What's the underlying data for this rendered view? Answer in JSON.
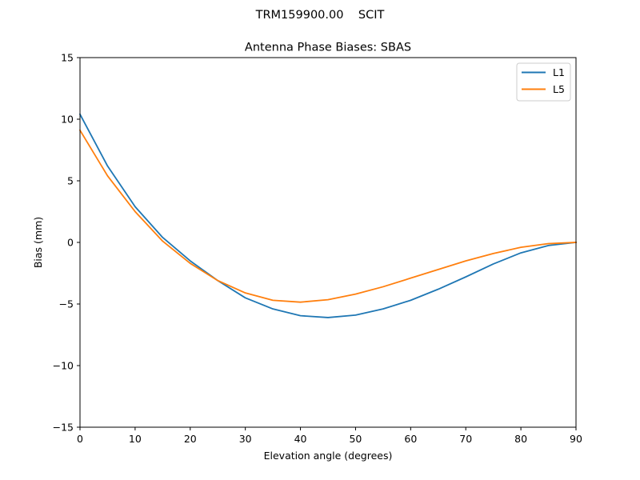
{
  "chart_data": {
    "type": "line",
    "suptitle": "TRM159900.00    SCIT",
    "title": "Antenna Phase Biases: SBAS",
    "xlabel": "Elevation angle (degrees)",
    "ylabel": "Bias (mm)",
    "xlim": [
      0,
      90
    ],
    "ylim": [
      -15,
      15
    ],
    "xticks": [
      0,
      10,
      20,
      30,
      40,
      50,
      60,
      70,
      80,
      90
    ],
    "yticks": [
      -15,
      -10,
      -5,
      0,
      5,
      10,
      15
    ],
    "ytick_labels": [
      "−15",
      "−10",
      "−5",
      "0",
      "5",
      "10",
      "15"
    ],
    "grid": false,
    "legend": "top-right",
    "x": [
      0,
      5,
      10,
      15,
      20,
      25,
      30,
      35,
      40,
      45,
      50,
      55,
      60,
      65,
      70,
      75,
      80,
      85,
      90
    ],
    "series": [
      {
        "name": "L1",
        "color": "#1f77b4",
        "values": [
          10.4,
          6.2,
          2.9,
          0.4,
          -1.5,
          -3.1,
          -4.5,
          -5.4,
          -5.95,
          -6.1,
          -5.9,
          -5.4,
          -4.7,
          -3.8,
          -2.8,
          -1.75,
          -0.85,
          -0.25,
          0.0
        ]
      },
      {
        "name": "L5",
        "color": "#ff7f0e",
        "values": [
          9.1,
          5.4,
          2.5,
          0.1,
          -1.7,
          -3.1,
          -4.1,
          -4.7,
          -4.85,
          -4.65,
          -4.2,
          -3.6,
          -2.9,
          -2.2,
          -1.5,
          -0.9,
          -0.4,
          -0.1,
          0.0
        ]
      }
    ]
  }
}
